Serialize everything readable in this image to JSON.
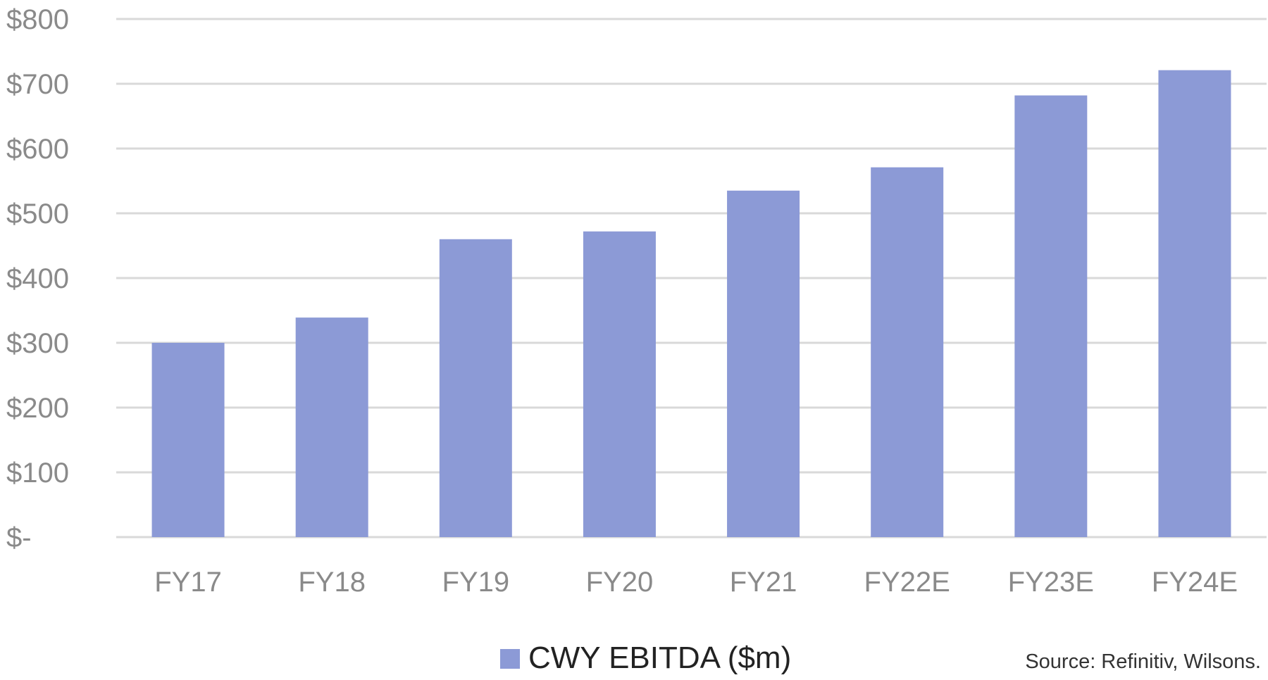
{
  "chart_data": {
    "type": "bar",
    "categories": [
      "FY17",
      "FY18",
      "FY19",
      "FY20",
      "FY21",
      "FY22E",
      "FY23E",
      "FY24E"
    ],
    "series": [
      {
        "name": "CWY EBITDA ($m)",
        "values": [
          300,
          339,
          460,
          472,
          535,
          571,
          682,
          721
        ]
      }
    ],
    "ylim": [
      0,
      800
    ],
    "yticks": [
      0,
      100,
      200,
      300,
      400,
      500,
      600,
      700,
      800
    ],
    "ytick_labels": [
      "$-",
      "$100",
      "$200",
      "$300",
      "$400",
      "$500",
      "$600",
      "$700",
      "$800"
    ],
    "grid": true,
    "legend_position": "bottom-center",
    "bar_color": "#8c9ad6",
    "grid_color": "#d9d9d9",
    "source": "Source: Refinitiv, Wilsons."
  }
}
